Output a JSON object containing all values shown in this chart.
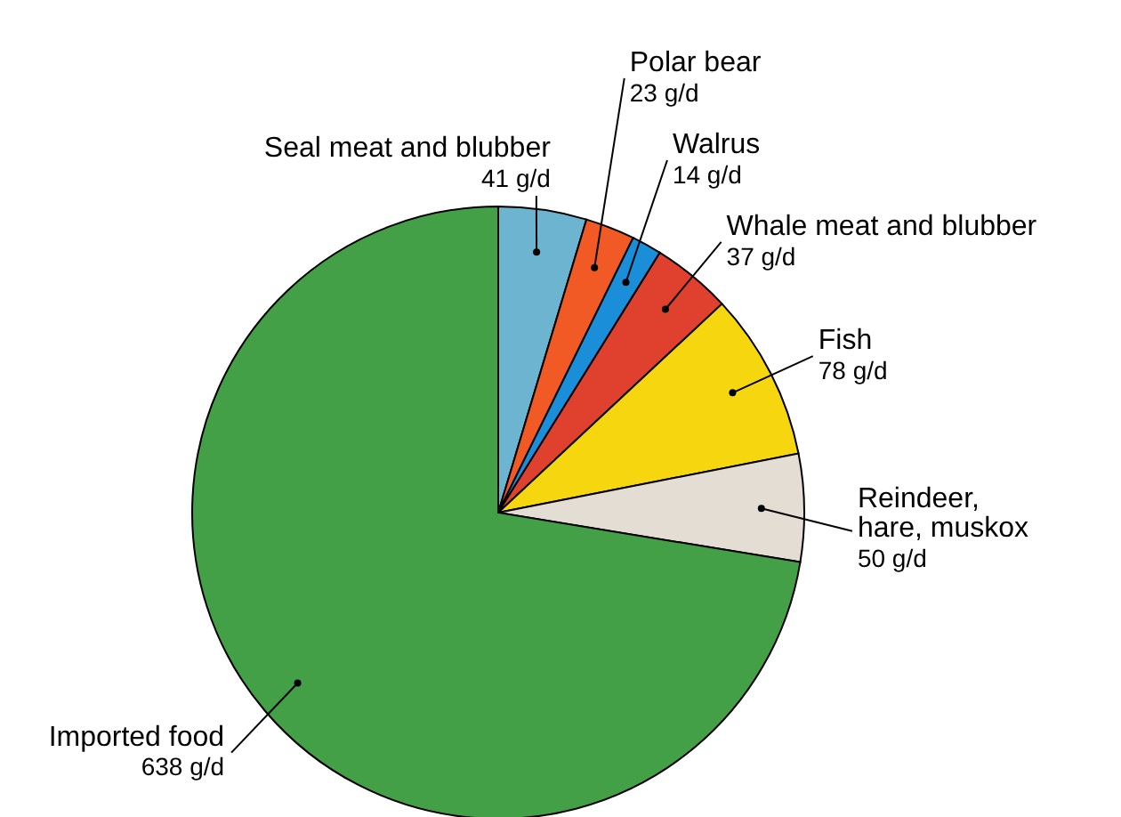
{
  "chart_data": {
    "type": "pie",
    "categories": [
      "Seal meat and blubber",
      "Polar bear",
      "Walrus",
      "Whale meat and blubber",
      "Fish",
      "Reindeer, hare, muskox",
      "Imported food"
    ],
    "values": [
      41,
      23,
      14,
      37,
      78,
      50,
      638
    ],
    "value_labels": [
      "41 g/d",
      "23 g/d",
      "14 g/d",
      "37 g/d",
      "78 g/d",
      "50 g/d",
      "638 g/d"
    ],
    "colors": [
      "#6cb4d0",
      "#f15a24",
      "#1a8ed8",
      "#e0412f",
      "#f5d60f",
      "#e4ddd4",
      "#43a047"
    ]
  }
}
